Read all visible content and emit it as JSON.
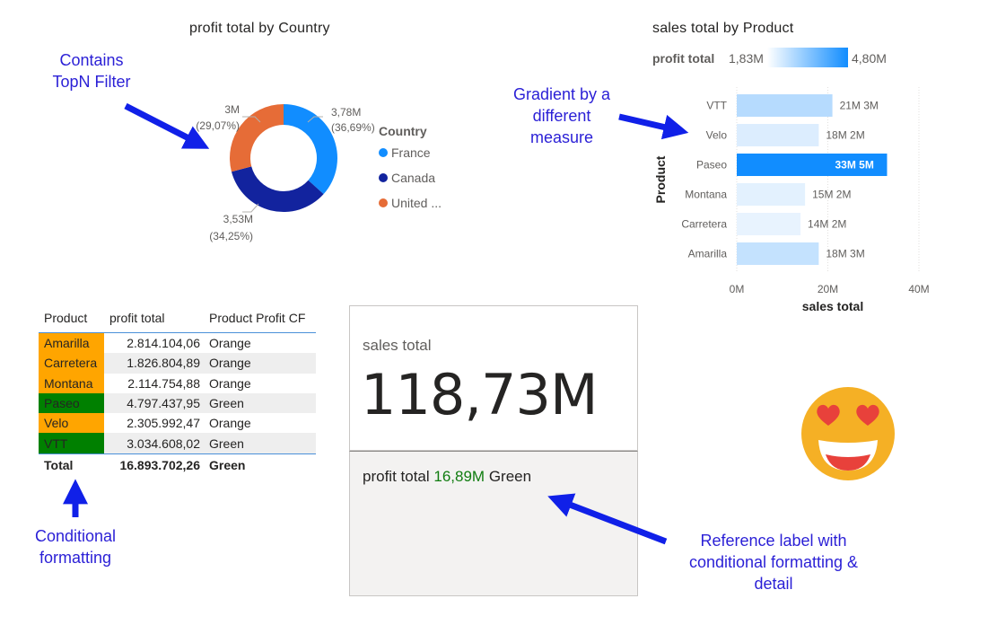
{
  "donut": {
    "title": "profit total by Country",
    "legend_title": "Country",
    "legend_items": [
      {
        "label": "France",
        "color": "#118dff"
      },
      {
        "label": "Canada",
        "color": "#12239e"
      },
      {
        "label": "United ...",
        "color": "#e66c37"
      }
    ],
    "slice_labels": [
      {
        "value": "3,78M",
        "pct": "(36,69%)"
      },
      {
        "value": "3,53M",
        "pct": "(34,25%)"
      },
      {
        "value": "3M",
        "pct": "(29,07%)"
      }
    ]
  },
  "bar": {
    "title": "sales total by Product",
    "gradient_legend": {
      "label": "profit total",
      "min": "1,83M",
      "max": "4,80M"
    },
    "ylabel": "Product",
    "xlabel": "sales total",
    "x_ticks": [
      "0M",
      "20M",
      "40M"
    ]
  },
  "table": {
    "headers": [
      "Product",
      "profit total",
      "Product Profit CF"
    ],
    "rows": [
      {
        "product": "Amarilla",
        "profit": "2.814.104,06",
        "cf": "Orange"
      },
      {
        "product": "Carretera",
        "profit": "1.826.804,89",
        "cf": "Orange"
      },
      {
        "product": "Montana",
        "profit": "2.114.754,88",
        "cf": "Orange"
      },
      {
        "product": "Paseo",
        "profit": "4.797.437,95",
        "cf": "Green"
      },
      {
        "product": "Velo",
        "profit": "2.305.992,47",
        "cf": "Orange"
      },
      {
        "product": "VTT",
        "profit": "3.034.608,02",
        "cf": "Green"
      }
    ],
    "total": {
      "label": "Total",
      "profit": "16.893.702,26",
      "cf": "Green"
    },
    "cf_colors": {
      "Orange": "#ffa500",
      "Green": "#008000"
    }
  },
  "card": {
    "label": "sales total",
    "value": "118,73M",
    "ref_label": "profit total",
    "ref_value": "16,89M",
    "ref_detail": "Green"
  },
  "annotations": {
    "topn": [
      "Contains",
      "TopN Filter"
    ],
    "gradient": [
      "Gradient by a",
      "different",
      "measure"
    ],
    "conditional": [
      "Conditional",
      "formatting"
    ],
    "reference": [
      "Reference label with",
      "conditional formatting &",
      "detail"
    ]
  },
  "emoji": "heart-eyes-face-icon",
  "chart_data": [
    {
      "type": "pie",
      "donut": true,
      "title": "profit total by Country",
      "legend_title": "Country",
      "legend_position": "right",
      "categories": [
        "France",
        "Canada",
        "United ..."
      ],
      "values": [
        3.78,
        3.53,
        3.0
      ],
      "percent": [
        36.69,
        34.25,
        29.07
      ],
      "colors": [
        "#118dff",
        "#12239e",
        "#e66c37"
      ]
    },
    {
      "type": "bar",
      "orientation": "horizontal",
      "title": "sales total by Product",
      "ylabel": "Product",
      "xlabel": "sales total",
      "xlim": [
        0,
        40
      ],
      "x_ticks": [
        0,
        20,
        40
      ],
      "grid": true,
      "categories": [
        "VTT",
        "Velo",
        "Paseo",
        "Montana",
        "Carretera",
        "Amarilla"
      ],
      "values": [
        21,
        18,
        33,
        15,
        14,
        18
      ],
      "data_labels": [
        "21M",
        "18M",
        "33M",
        "15M",
        "14M",
        "18M"
      ],
      "color_measure": {
        "name": "profit total",
        "labels": [
          "3M",
          "2M",
          "5M",
          "2M",
          "2M",
          "3M"
        ],
        "values": [
          3.03,
          2.31,
          4.8,
          2.11,
          1.83,
          2.81
        ],
        "range": [
          1.83,
          4.8
        ],
        "color_low": "#e8f3fe",
        "color_high": "#118dff"
      }
    },
    {
      "type": "table",
      "columns": [
        "Product",
        "profit total",
        "Product Profit CF"
      ],
      "rows": [
        [
          "Amarilla",
          "2.814.104,06",
          "Orange"
        ],
        [
          "Carretera",
          "1.826.804,89",
          "Orange"
        ],
        [
          "Montana",
          "2.114.754,88",
          "Orange"
        ],
        [
          "Paseo",
          "4.797.437,95",
          "Green"
        ],
        [
          "Velo",
          "2.305.992,47",
          "Orange"
        ],
        [
          "VTT",
          "3.034.608,02",
          "Green"
        ]
      ],
      "total": [
        "Total",
        "16.893.702,26",
        "Green"
      ]
    }
  ]
}
